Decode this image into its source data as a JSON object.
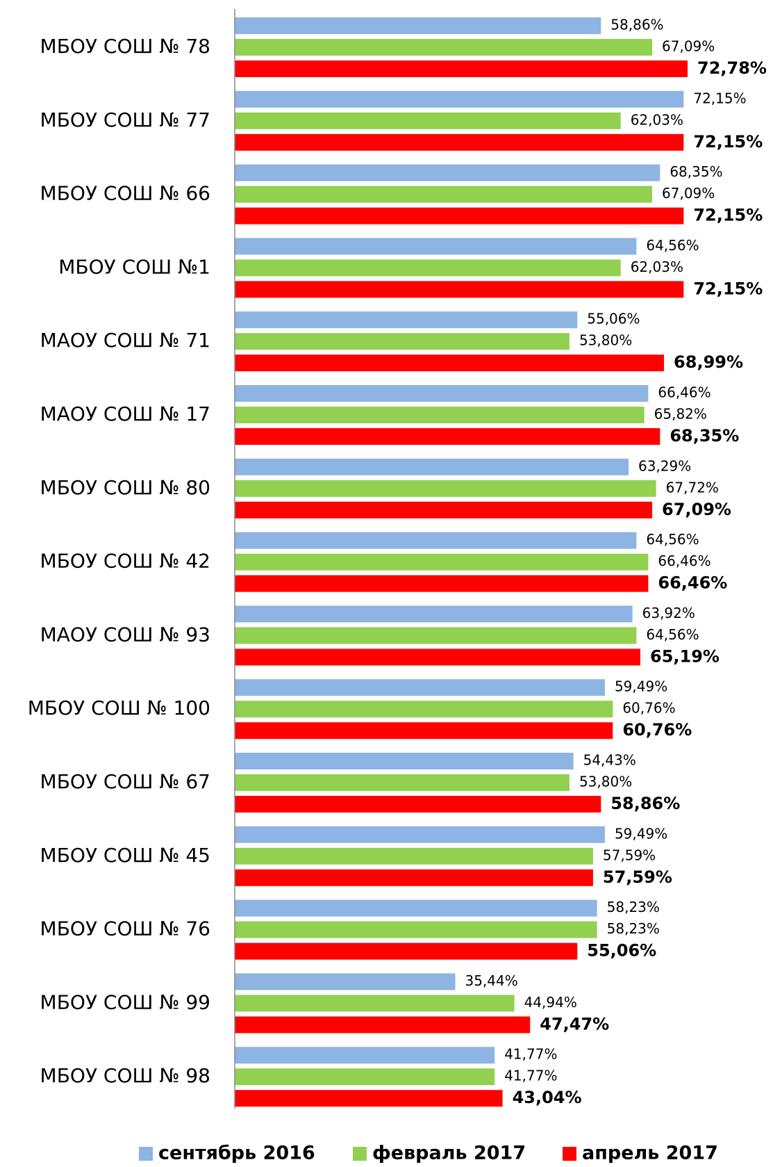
{
  "chart_data": {
    "type": "bar",
    "orientation": "horizontal",
    "categories": [
      "МБОУ СОШ № 78",
      "МБОУ СОШ № 77",
      "МБОУ СОШ № 66",
      "МБОУ СОШ №1",
      "МАОУ СОШ № 71",
      "МАОУ СОШ № 17",
      "МБОУ СОШ № 80",
      "МБОУ СОШ № 42",
      "МАОУ СОШ № 93",
      "МБОУ СОШ № 100",
      "МБОУ СОШ № 67",
      "МБОУ СОШ № 45",
      "МБОУ СОШ № 76",
      "МБОУ СОШ № 99",
      "МБОУ СОШ № 98"
    ],
    "series": [
      {
        "name": "сентябрь 2016",
        "color": "#8db4e2",
        "bold_labels": false,
        "values": [
          58.86,
          72.15,
          68.35,
          64.56,
          55.06,
          66.46,
          63.29,
          64.56,
          63.92,
          59.49,
          54.43,
          59.49,
          58.23,
          35.44,
          41.77
        ],
        "value_labels": [
          "58,86%",
          "72,15%",
          "68,35%",
          "64,56%",
          "55,06%",
          "66,46%",
          "63,29%",
          "64,56%",
          "63,92%",
          "59,49%",
          "54,43%",
          "59,49%",
          "58,23%",
          "35,44%",
          "41,77%"
        ]
      },
      {
        "name": "февраль 2017",
        "color": "#92d050",
        "bold_labels": false,
        "values": [
          67.09,
          62.03,
          67.09,
          62.03,
          53.8,
          65.82,
          67.72,
          66.46,
          64.56,
          60.76,
          53.8,
          57.59,
          58.23,
          44.94,
          41.77
        ],
        "value_labels": [
          "67,09%",
          "62,03%",
          "67,09%",
          "62,03%",
          "53,80%",
          "65,82%",
          "67,72%",
          "66,46%",
          "64,56%",
          "60,76%",
          "53,80%",
          "57,59%",
          "58,23%",
          "44,94%",
          "41,77%"
        ]
      },
      {
        "name": "апрель 2017",
        "color": "#ff0000",
        "bold_labels": true,
        "values": [
          72.78,
          72.15,
          72.15,
          72.15,
          68.99,
          68.35,
          67.09,
          66.46,
          65.19,
          60.76,
          58.86,
          57.59,
          55.06,
          47.47,
          43.04
        ],
        "value_labels": [
          "72,78%",
          "72,15%",
          "72,15%",
          "72,15%",
          "68,99%",
          "68,35%",
          "67,09%",
          "66,46%",
          "65,19%",
          "60,76%",
          "58,86%",
          "57,59%",
          "55,06%",
          "47,47%",
          "43,04%"
        ]
      }
    ],
    "legend": "bottom"
  }
}
